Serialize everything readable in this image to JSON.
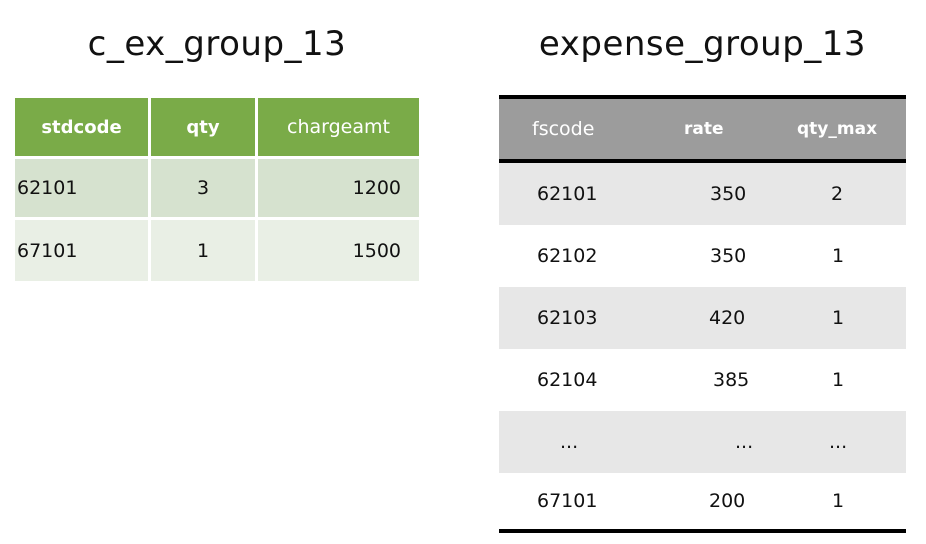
{
  "left_table": {
    "title": "c_ex_group_13",
    "columns": [
      "stdcode",
      "qty",
      "chargeamt"
    ],
    "rows": [
      [
        "62101",
        "3",
        "1200"
      ],
      [
        "67101",
        "1",
        "1500"
      ]
    ],
    "colors": {
      "header": "#7aab48",
      "row_odd": "#d6e2cf",
      "row_even": "#e9efe5"
    }
  },
  "right_table": {
    "title": "expense_group_13",
    "columns": [
      "fscode",
      "rate",
      "qty_max"
    ],
    "rows": [
      [
        "62101",
        "350",
        "2"
      ],
      [
        "62102",
        "350",
        "1"
      ],
      [
        "62103",
        "420",
        "1"
      ],
      [
        "62104",
        "385",
        "1"
      ],
      [
        "...",
        "...",
        "..."
      ],
      [
        "67101",
        "200",
        "1"
      ]
    ],
    "colors": {
      "header": "#9c9c9c",
      "band": "#e7e7e7"
    }
  }
}
